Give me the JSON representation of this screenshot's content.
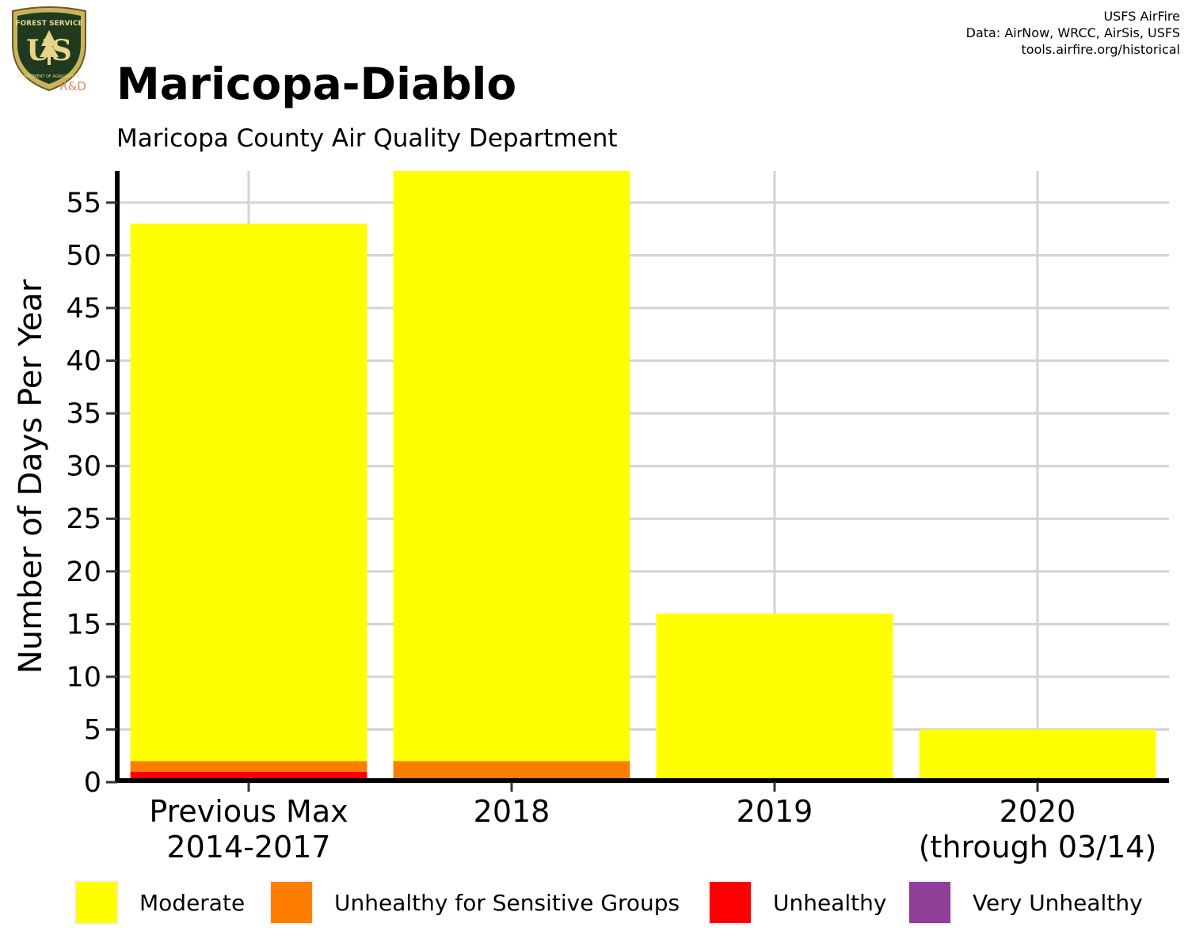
{
  "header": {
    "title": "Maricopa-Diablo",
    "subtitle": "Maricopa County Air Quality Department",
    "credits": [
      "USFS AirFire",
      "Data: AirNow, WRCC, AirSis, USFS",
      "tools.airfire.org/historical"
    ],
    "logo_text": {
      "top": "FOREST SERVICE",
      "main": "US",
      "bottom": "DEPARTMENT OF AGRICULTURE",
      "tag": "R&D"
    }
  },
  "colors": {
    "moderate": "#ffff00",
    "usg": "#ff7e00",
    "unhealthy": "#ff0000",
    "very_unhealthy": "#8f3f97",
    "grid": "#d3d3d3",
    "logo_green": "#1f3a1f",
    "logo_gold": "#e8d38a",
    "logo_tag": "#f08070"
  },
  "chart_data": {
    "type": "bar",
    "stacked": true,
    "categories": [
      [
        "Previous Max",
        "2014-2017"
      ],
      [
        "2018"
      ],
      [
        "2019"
      ],
      [
        "2020",
        "(through 03/14)"
      ]
    ],
    "ylabel": "Number of Days Per Year",
    "xlabel": "",
    "ylim": [
      0,
      58
    ],
    "yticks": [
      0,
      5,
      10,
      15,
      20,
      25,
      30,
      35,
      40,
      45,
      50,
      55
    ],
    "grid": true,
    "legend_position": "bottom",
    "series": [
      {
        "name": "Unhealthy",
        "color": "#ff0000",
        "values": [
          1,
          0,
          0,
          0
        ]
      },
      {
        "name": "Unhealthy for Sensitive Groups",
        "color": "#ff7e00",
        "values": [
          1,
          2,
          0,
          0
        ]
      },
      {
        "name": "Moderate",
        "color": "#ffff00",
        "values": [
          51,
          56,
          16,
          5
        ]
      },
      {
        "name": "Very Unhealthy",
        "color": "#8f3f97",
        "values": [
          0,
          0,
          0,
          0
        ]
      }
    ]
  },
  "legend": [
    {
      "label": "Moderate",
      "color": "#ffff00"
    },
    {
      "label": "Unhealthy for Sensitive Groups",
      "color": "#ff7e00"
    },
    {
      "label": "Unhealthy",
      "color": "#ff0000"
    },
    {
      "label": "Very Unhealthy",
      "color": "#8f3f97"
    }
  ]
}
